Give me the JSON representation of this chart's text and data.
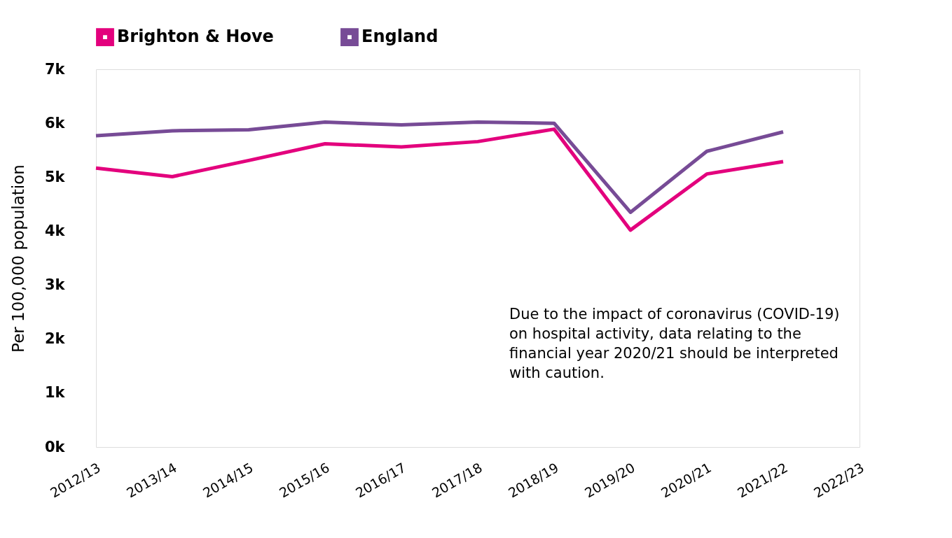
{
  "chart_data": {
    "type": "line",
    "categories": [
      "2012/13",
      "2013/14",
      "2014/15",
      "2015/16",
      "2016/17",
      "2017/18",
      "2018/19",
      "2019/20",
      "2020/21",
      "2021/22",
      "2022/23"
    ],
    "series": [
      {
        "name": "Brighton & Hove",
        "color": "#e3007d",
        "values": [
          5.17,
          5.01,
          5.31,
          5.62,
          5.56,
          5.66,
          5.89,
          4.02,
          5.06,
          5.29,
          null
        ]
      },
      {
        "name": "England",
        "color": "#774b96",
        "values": [
          5.77,
          5.86,
          5.88,
          6.02,
          5.97,
          6.02,
          6.0,
          4.35,
          5.48,
          5.84,
          null
        ]
      }
    ],
    "ylabel": "Per 100,000 population",
    "ylim": [
      0,
      7
    ],
    "yticks": [
      {
        "value": 0,
        "label": "0k"
      },
      {
        "value": 1,
        "label": "1k"
      },
      {
        "value": 2,
        "label": "2k"
      },
      {
        "value": 3,
        "label": "3k"
      },
      {
        "value": 4,
        "label": "4k"
      },
      {
        "value": 5,
        "label": "5k"
      },
      {
        "value": 6,
        "label": "6k"
      },
      {
        "value": 7,
        "label": "7k"
      }
    ],
    "annotations": [
      "Due to the impact of coronavirus (COVID-19)\non hospital activity, data relating to the\nfinancial year 2020/21 should be interpreted\nwith caution."
    ],
    "legend": "top",
    "grid": false,
    "marker": "none",
    "line_style": "solid"
  }
}
